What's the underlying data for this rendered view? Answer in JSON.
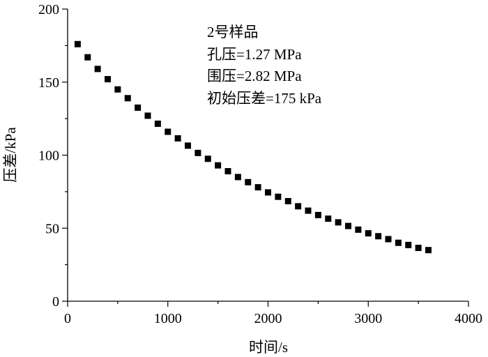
{
  "chart_data": {
    "type": "scatter",
    "xlabel": "时间/s",
    "ylabel": "压差/kPa",
    "xlim": [
      0,
      4000
    ],
    "ylim": [
      0,
      200
    ],
    "xticks": [
      0,
      1000,
      2000,
      3000,
      4000
    ],
    "yticks": [
      0,
      50,
      100,
      150,
      200
    ],
    "xtick_labels": [
      "0",
      "1000",
      "2000",
      "3000",
      "4000"
    ],
    "ytick_labels": [
      "0",
      "50",
      "100",
      "150",
      "200"
    ],
    "grid": false,
    "annotations": [
      "2号样品",
      "孔压=1.27 MPa",
      "围压=2.82 MPa",
      "初始压差=175 kPa"
    ],
    "series": [
      {
        "marker": "square",
        "color": "#000000",
        "x": [
          100,
          200,
          300,
          400,
          500,
          600,
          700,
          800,
          900,
          1000,
          1100,
          1200,
          1300,
          1400,
          1500,
          1600,
          1700,
          1800,
          1900,
          2000,
          2100,
          2200,
          2300,
          2400,
          2500,
          2600,
          2700,
          2800,
          2900,
          3000,
          3100,
          3200,
          3300,
          3400,
          3500,
          3600
        ],
        "y": [
          176,
          167,
          159,
          152,
          145,
          139,
          132.5,
          127,
          121.5,
          116,
          111.5,
          106.5,
          101.5,
          97.5,
          93,
          89,
          85,
          81.5,
          78,
          74.5,
          71.5,
          68.5,
          65,
          62,
          59,
          56.5,
          54,
          51.5,
          49,
          46.5,
          44.5,
          42.5,
          40,
          38.5,
          36.5,
          35
        ]
      }
    ]
  }
}
